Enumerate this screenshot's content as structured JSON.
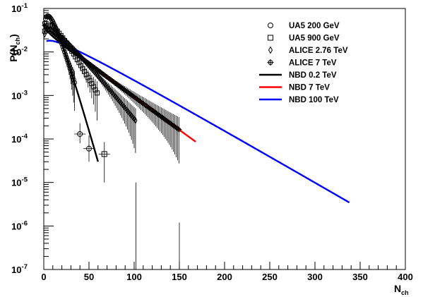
{
  "chart_data": {
    "type": "line",
    "xlabel": "N",
    "xlabel_sub": "ch",
    "ylabel": "P(N",
    "ylabel_sub": "ch",
    "ylabel_close": ")",
    "xlim": [
      0,
      400
    ],
    "ylim": [
      1e-07,
      0.1
    ],
    "yscale": "log",
    "grid": false,
    "legend_position": "top-right",
    "x_ticks": [
      {
        "value": 0,
        "label": "0"
      },
      {
        "value": 50,
        "label": "50"
      },
      {
        "value": 100,
        "label": "100"
      },
      {
        "value": 150,
        "label": "150"
      },
      {
        "value": 200,
        "label": "200"
      },
      {
        "value": 250,
        "label": "250"
      },
      {
        "value": 300,
        "label": "300"
      },
      {
        "value": 350,
        "label": "350"
      },
      {
        "value": 400,
        "label": "400"
      }
    ],
    "y_ticks": [
      {
        "value": 1e-07,
        "mant": "10",
        "exp": "-7"
      },
      {
        "value": 1e-06,
        "mant": "10",
        "exp": "-6"
      },
      {
        "value": 1e-05,
        "mant": "10",
        "exp": "-5"
      },
      {
        "value": 0.0001,
        "mant": "10",
        "exp": "-4"
      },
      {
        "value": 0.001,
        "mant": "10",
        "exp": "-3"
      },
      {
        "value": 0.01,
        "mant": "10",
        "exp": "-2"
      },
      {
        "value": 0.1,
        "mant": "10",
        "exp": "-1"
      }
    ],
    "curves": [
      {
        "name": "NBD 0.2 TeV",
        "color": "#000000",
        "x_start": 2,
        "x_end": 60,
        "mean": 10,
        "k": 2.0
      },
      {
        "name": "NBD 7 TeV",
        "color": "#ff0000",
        "x_start": 45,
        "x_end": 168,
        "mean": 26,
        "k": 0.9
      },
      {
        "name": "NBD 100 TeV",
        "color": "#0000ff",
        "x_start": 3,
        "x_end": 338,
        "mean": 42,
        "k": 1.2
      }
    ],
    "markers": [
      {
        "name": "UA5 200 GeV",
        "symbol": "circle",
        "mean": 10,
        "k": 2.0,
        "x_start": 1,
        "x_end": 34,
        "step": 1,
        "extra": [
          {
            "x": 40,
            "y": 0.00013,
            "yerr": [
              5e-05,
              0.0001
            ]
          },
          {
            "x": 50,
            "y": 6e-05,
            "yerr": [
              3e-05,
              6e-05
            ]
          }
        ]
      },
      {
        "name": "UA5 900 GeV",
        "symbol": "square",
        "mean": 16.5,
        "k": 1.6,
        "x_start": 1,
        "x_end": 60,
        "step": 2,
        "extra": [
          {
            "x": 67,
            "y": 4.5e-05,
            "yerr": [
              3.5e-05,
              4e-05
            ]
          }
        ]
      },
      {
        "name": "ALICE 2.76 TeV",
        "symbol": "diamond",
        "mean": 22,
        "k": 1.4,
        "x_start": 1,
        "x_end": 102,
        "step": 1.5,
        "extra": []
      },
      {
        "name": "ALICE 7 TeV",
        "symbol": "cross",
        "mean": 26,
        "k": 0.9,
        "x_start": 1,
        "x_end": 150,
        "step": 1.5,
        "extra": []
      }
    ]
  }
}
